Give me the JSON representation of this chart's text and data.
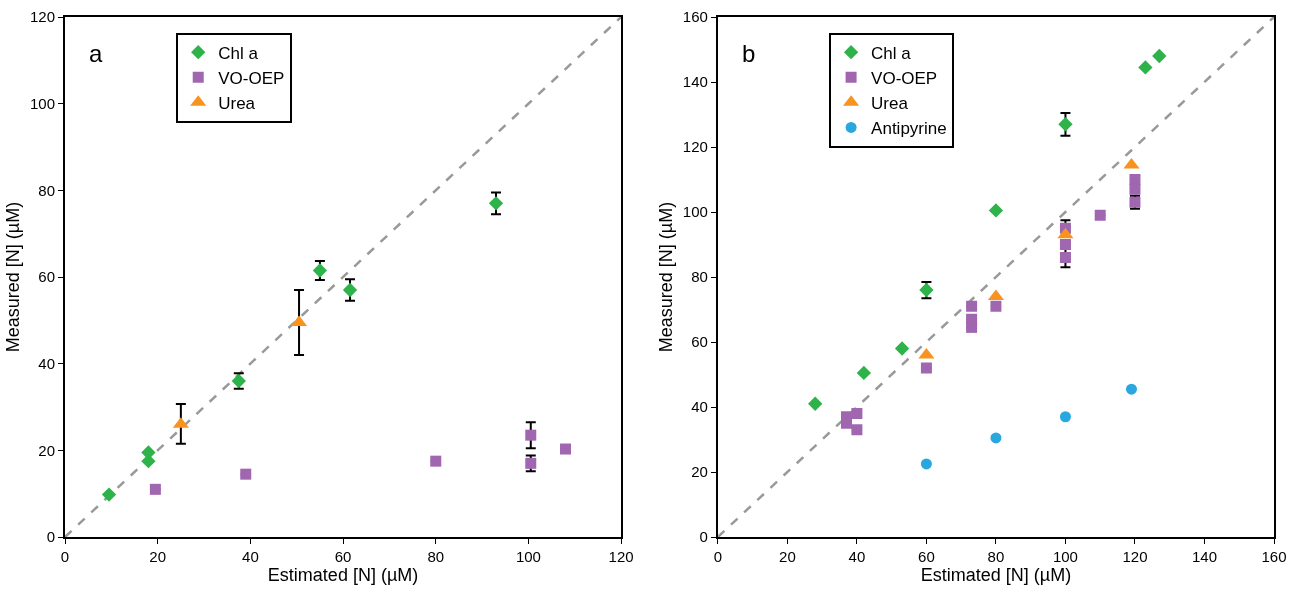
{
  "chart_data": [
    {
      "type": "scatter",
      "annotations": [
        "a"
      ],
      "xlabel": "Estimated [N] (µM)",
      "ylabel": "Measured [N] (µM)",
      "xlim": [
        0,
        120
      ],
      "ylim": [
        0,
        120
      ],
      "xticks": [
        0,
        20,
        40,
        60,
        80,
        100,
        120
      ],
      "yticks": [
        0,
        20,
        40,
        60,
        80,
        100,
        120
      ],
      "legend": "top left",
      "series": [
        {
          "type": "line",
          "color": "#999999",
          "line_style": "dashed",
          "marker": "none",
          "x": [
            0,
            120
          ],
          "values": [
            0,
            120
          ]
        },
        {
          "name": "Chl a",
          "color": "#2eb24a",
          "marker": "diamond",
          "x": [
            9.5,
            18,
            18,
            37.5,
            55,
            61.5,
            93
          ],
          "values": [
            9.8,
            17.5,
            19.5,
            36,
            61.5,
            57,
            77
          ],
          "errors": [
            null,
            null,
            null,
            1.8,
            2.2,
            2.5,
            2.5
          ]
        },
        {
          "name": "VO-OEP",
          "color": "#a066b0",
          "marker": "square",
          "x": [
            19.5,
            39,
            80,
            100.5,
            100.5,
            108
          ],
          "values": [
            11,
            14.5,
            17.5,
            23.5,
            17,
            20.3
          ],
          "errors": [
            null,
            null,
            null,
            3,
            1.8,
            null
          ]
        },
        {
          "name": "Urea",
          "color": "#f7931e",
          "marker": "triangle",
          "x": [
            25,
            50.5
          ],
          "values": [
            26,
            49.5
          ],
          "errors": [
            [
              21.5,
              30.7
            ],
            [
              42,
              57
            ]
          ]
        }
      ]
    },
    {
      "type": "scatter",
      "annotations": [
        "b"
      ],
      "xlabel": "Estimated [N] (µM)",
      "ylabel": "Measured [N] (µM)",
      "xlim": [
        0,
        160
      ],
      "ylim": [
        0,
        160
      ],
      "xticks": [
        0,
        20,
        40,
        60,
        80,
        100,
        120,
        140,
        160
      ],
      "yticks": [
        0,
        20,
        40,
        60,
        80,
        100,
        120,
        140,
        160
      ],
      "legend": "top left",
      "series": [
        {
          "type": "line",
          "color": "#999999",
          "line_style": "dashed",
          "marker": "none",
          "x": [
            0,
            160
          ],
          "values": [
            0,
            160
          ]
        },
        {
          "name": "Chl a",
          "color": "#2eb24a",
          "marker": "diamond",
          "x": [
            28,
            42,
            53,
            60,
            80,
            100,
            123,
            127
          ],
          "values": [
            41,
            50.5,
            58,
            76,
            100.5,
            127,
            144.5,
            148
          ],
          "errors": [
            null,
            null,
            null,
            2.5,
            null,
            3.5,
            null,
            null
          ]
        },
        {
          "name": "VO-OEP",
          "color": "#a066b0",
          "marker": "square",
          "x": [
            37,
            37,
            40,
            40,
            60,
            73,
            73,
            73,
            80,
            100,
            100,
            100,
            110,
            120,
            120,
            120
          ],
          "values": [
            37,
            35,
            38,
            33,
            52,
            71,
            67,
            64.5,
            71,
            95,
            90,
            86,
            99,
            110,
            107,
            103
          ],
          "errors": [
            null,
            null,
            null,
            null,
            null,
            null,
            null,
            null,
            null,
            2.5,
            null,
            3,
            null,
            null,
            null,
            2
          ]
        },
        {
          "name": "Urea",
          "color": "#f7931e",
          "marker": "triangle",
          "x": [
            60,
            80,
            100,
            119
          ],
          "values": [
            56,
            74,
            93,
            114.5
          ]
        },
        {
          "name": "Antipyrine",
          "color": "#29a8e0",
          "marker": "circle",
          "x": [
            60,
            80,
            100,
            119
          ],
          "values": [
            22.5,
            30.5,
            37,
            45.5
          ]
        }
      ]
    }
  ]
}
